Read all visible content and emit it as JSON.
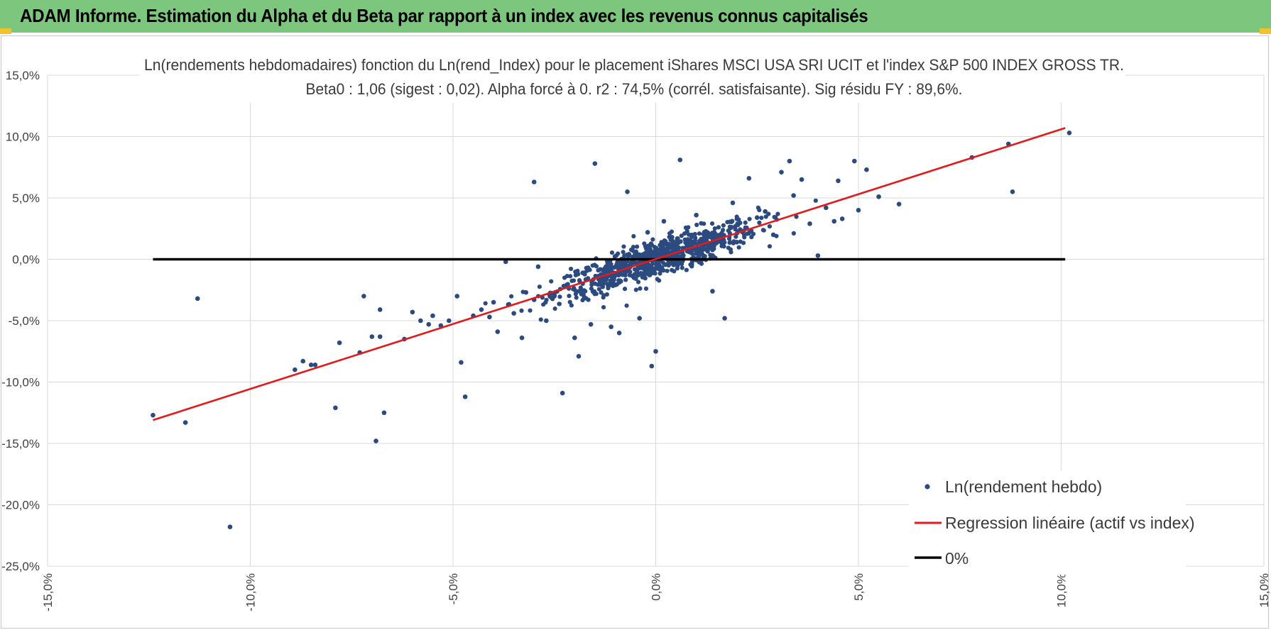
{
  "banner": {
    "title": "ADAM Informe. Estimation du Alpha et du Beta par rapport à un index avec les revenus connus capitalisés"
  },
  "colors": {
    "banner": "#7dc67d",
    "points": "#2b4a80",
    "regression": "#e31a1c",
    "zero": "#000000",
    "grid": "#d9d9d9"
  },
  "chart_data": {
    "type": "scatter",
    "title": "Ln(rendements hebdomadaires) fonction du Ln(rend_Index) pour le placement iShares MSCI USA SRI UCIT et l'index S&P 500 INDEX GROSS TR.",
    "subtitle": "Beta0 : 1,06 (sigest : 0,02).  Alpha forcé à 0. r2 : 74,5% (corrél. satisfaisante). Sig résidu FY : 89,6%.",
    "xlabel": "",
    "ylabel": "",
    "xlim": [
      -15,
      15
    ],
    "ylim": [
      -25,
      15
    ],
    "x_ticks": [
      "-15,0%",
      "-10,0%",
      "-5,0%",
      "0,0%",
      "5,0%",
      "10,0%",
      "15,0%"
    ],
    "y_ticks": [
      "15,0%",
      "10,0%",
      "5,0%",
      "0,0%",
      "-5,0%",
      "-10,0%",
      "-15,0%",
      "-20,0%",
      "-25,0%"
    ],
    "legend_position": "bottom-right",
    "beta": 1.06,
    "series": [
      {
        "name": "Ln(rendement hebdo)",
        "kind": "scatter",
        "points": [
          [
            -12.4,
            -12.7
          ],
          [
            -11.6,
            -13.3
          ],
          [
            -11.3,
            -3.2
          ],
          [
            -10.5,
            -21.8
          ],
          [
            -8.9,
            -9.0
          ],
          [
            -8.7,
            -8.3
          ],
          [
            -8.5,
            -8.6
          ],
          [
            -8.4,
            -8.6
          ],
          [
            -7.9,
            -12.1
          ],
          [
            -7.8,
            -6.8
          ],
          [
            -7.3,
            -7.6
          ],
          [
            -7.2,
            -3.0
          ],
          [
            -7.0,
            -6.3
          ],
          [
            -6.9,
            -14.8
          ],
          [
            -6.8,
            -4.1
          ],
          [
            -6.8,
            -6.3
          ],
          [
            -6.7,
            -12.5
          ],
          [
            -6.2,
            -6.5
          ],
          [
            -6.0,
            -4.3
          ],
          [
            -5.8,
            -5.0
          ],
          [
            -5.6,
            -5.3
          ],
          [
            -5.5,
            -4.6
          ],
          [
            -5.3,
            -5.4
          ],
          [
            -5.1,
            -5.0
          ],
          [
            -4.9,
            -3.0
          ],
          [
            -4.8,
            -8.4
          ],
          [
            -4.7,
            -11.2
          ],
          [
            -4.5,
            -4.6
          ],
          [
            -4.3,
            -4.1
          ],
          [
            -4.1,
            -4.7
          ],
          [
            -4.0,
            -3.5
          ],
          [
            -3.9,
            -5.9
          ],
          [
            -3.7,
            -0.2
          ],
          [
            -3.5,
            -4.4
          ],
          [
            -3.3,
            -6.4
          ],
          [
            -3.2,
            -2.7
          ],
          [
            -3.0,
            6.3
          ],
          [
            -3.0,
            -3.3
          ],
          [
            -2.9,
            -0.6
          ],
          [
            -2.7,
            -5.0
          ],
          [
            -2.5,
            -3.0
          ],
          [
            -2.3,
            -10.9
          ],
          [
            -2.2,
            -2.1
          ],
          [
            -2.0,
            -6.4
          ],
          [
            -1.9,
            -7.9
          ],
          [
            -1.8,
            -1.1
          ],
          [
            -1.6,
            -5.3
          ],
          [
            -1.5,
            7.8
          ],
          [
            -1.3,
            -1.4
          ],
          [
            -1.1,
            -5.5
          ],
          [
            -1.0,
            -1.3
          ],
          [
            -0.9,
            -6.0
          ],
          [
            -0.7,
            5.5
          ],
          [
            -0.5,
            -0.3
          ],
          [
            -0.4,
            -4.8
          ],
          [
            -0.2,
            2.2
          ],
          [
            -0.1,
            -8.7
          ],
          [
            0.0,
            -7.5
          ],
          [
            0.2,
            3.1
          ],
          [
            0.4,
            1.8
          ],
          [
            0.5,
            0.6
          ],
          [
            0.6,
            8.1
          ],
          [
            0.7,
            0.9
          ],
          [
            1.0,
            3.6
          ],
          [
            1.2,
            1.5
          ],
          [
            1.4,
            -2.6
          ],
          [
            1.6,
            2.0
          ],
          [
            1.7,
            -4.8
          ],
          [
            1.9,
            4.6
          ],
          [
            2.0,
            1.4
          ],
          [
            2.3,
            6.6
          ],
          [
            2.5,
            3.4
          ],
          [
            2.7,
            3.9
          ],
          [
            2.9,
            2.0
          ],
          [
            3.1,
            7.1
          ],
          [
            3.3,
            8.0
          ],
          [
            3.4,
            5.2
          ],
          [
            3.6,
            6.5
          ],
          [
            3.8,
            2.9
          ],
          [
            4.0,
            0.3
          ],
          [
            4.2,
            4.2
          ],
          [
            4.4,
            3.1
          ],
          [
            4.5,
            6.4
          ],
          [
            4.6,
            3.3
          ],
          [
            4.9,
            8.0
          ],
          [
            5.0,
            4.0
          ],
          [
            5.2,
            7.3
          ],
          [
            5.5,
            5.1
          ],
          [
            6.0,
            4.5
          ],
          [
            7.8,
            8.3
          ],
          [
            8.7,
            9.4
          ],
          [
            8.8,
            5.5
          ],
          [
            10.2,
            10.3
          ]
        ]
      },
      {
        "name": "Regression linéaire (actif vs index)",
        "kind": "line",
        "x": [
          -12.4,
          10.1
        ],
        "y": [
          -13.1,
          10.7
        ]
      },
      {
        "name": "0%",
        "kind": "line",
        "x": [
          -12.4,
          10.1
        ],
        "y": [
          0,
          0
        ]
      }
    ]
  }
}
